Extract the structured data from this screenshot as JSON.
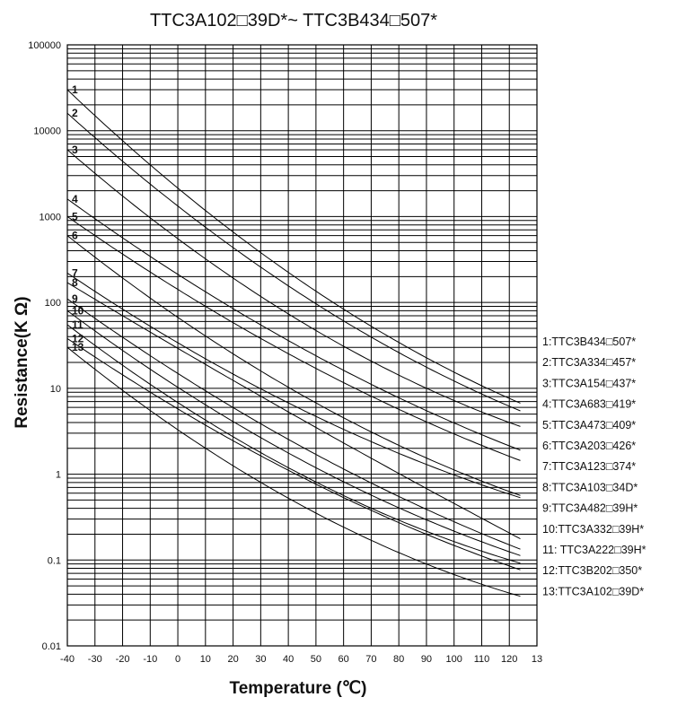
{
  "chart_data": {
    "type": "line",
    "title": "TTC3A102□39D*~ TTC3B434□507*",
    "xlabel": "Temperature (℃)",
    "ylabel": "Resistance(K Ω)",
    "x_ticks": [
      "-40",
      "-30",
      "-20",
      "-10",
      "0",
      "10",
      "20",
      "30",
      "40",
      "50",
      "60",
      "70",
      "80",
      "90",
      "100",
      "110",
      "120",
      "13"
    ],
    "y_ticks": [
      "0.01",
      "0.1",
      "1",
      "10",
      "100",
      "1000",
      "10000",
      "100000"
    ],
    "xlim": [
      -40,
      130
    ],
    "ylim": [
      0.01,
      100000
    ],
    "y_scale": "log",
    "grid": true,
    "legend_position": "right",
    "series": [
      {
        "label": "1",
        "name": "1:TTC3B434□507*",
        "x": [
          -40,
          25,
          125
        ],
        "y": [
          30000,
          500,
          6.5
        ]
      },
      {
        "label": "2",
        "name": "2:TTC3A334□457*",
        "x": [
          -40,
          25,
          125
        ],
        "y": [
          16000,
          334,
          5.3
        ]
      },
      {
        "label": "3",
        "name": "3:TTC3A154□437*",
        "x": [
          -40,
          25,
          125
        ],
        "y": [
          6000,
          150,
          3.5
        ]
      },
      {
        "label": "4",
        "name": "4:TTC3A683□419*",
        "x": [
          -40,
          25,
          125
        ],
        "y": [
          1600,
          68,
          1.85
        ]
      },
      {
        "label": "5",
        "name": "5:TTC3A473□409*",
        "x": [
          -40,
          25,
          125
        ],
        "y": [
          1000,
          47,
          1.4
        ]
      },
      {
        "label": "6",
        "name": "6:TTC3A203□426*",
        "x": [
          -40,
          25,
          125
        ],
        "y": [
          600,
          20,
          0.55
        ]
      },
      {
        "label": "7",
        "name": "7:TTC3A123□374*",
        "x": [
          -40,
          25,
          125
        ],
        "y": [
          220,
          12,
          0.52
        ]
      },
      {
        "label": "8",
        "name": "8:TTC3A103□34D*",
        "x": [
          -40,
          25,
          125
        ],
        "y": [
          170,
          10,
          0.17
        ]
      },
      {
        "label": "9",
        "name": "9:TTC3A482□39H*",
        "x": [
          -40,
          25,
          125
        ],
        "y": [
          110,
          4.8,
          0.13
        ]
      },
      {
        "label": "10",
        "name": "10:TTC3A332□39H*",
        "x": [
          -40,
          25,
          125
        ],
        "y": [
          80,
          3.3,
          0.11
        ]
      },
      {
        "label": "11",
        "name": "11: TTC3A222□39H*",
        "x": [
          -40,
          25,
          125
        ],
        "y": [
          55,
          2.2,
          0.09
        ]
      },
      {
        "label": "12",
        "name": "12:TTC3B202□350*",
        "x": [
          -40,
          25,
          125
        ],
        "y": [
          38,
          2.0,
          0.075
        ]
      },
      {
        "label": "13",
        "name": "13:TTC3A102□39D*",
        "x": [
          -40,
          25,
          125
        ],
        "y": [
          30,
          1.0,
          0.037
        ]
      }
    ]
  }
}
